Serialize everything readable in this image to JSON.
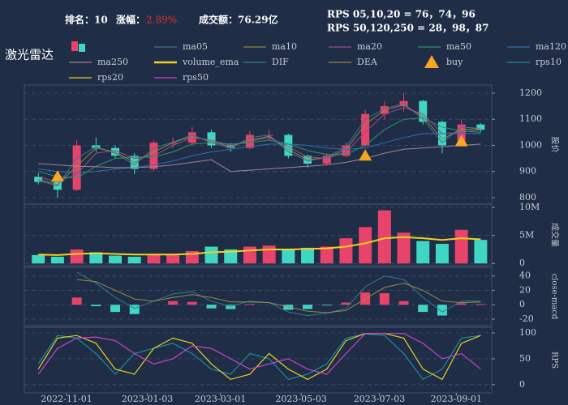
{
  "header": {
    "rank": "排名：10",
    "change_label": "涨幅：",
    "change": "2.89%",
    "turnover": "成交额：76.29亿",
    "rps_short": "RPS 05,10,20 = 76，74，96",
    "rps_long": "RPS 50,120,250 = 28，98，87",
    "title": "激光雷达"
  },
  "chart_data": [
    {
      "type": "candlestick",
      "ylabel": "股价",
      "ylim": [
        775,
        1231
      ],
      "yticks": [
        800,
        900,
        1000,
        1100,
        1200
      ],
      "grid": true,
      "xlim": [
        "2022-10-01",
        "2023-09-28"
      ],
      "x": [
        "2022-10-10",
        "2022-10-25",
        "2022-11-09",
        "2022-11-24",
        "2022-12-09",
        "2022-12-24",
        "2023-01-08",
        "2023-01-23",
        "2023-02-07",
        "2023-02-22",
        "2023-03-09",
        "2023-03-24",
        "2023-04-08",
        "2023-04-23",
        "2023-05-08",
        "2023-05-23",
        "2023-06-07",
        "2023-06-22",
        "2023-07-07",
        "2023-07-22",
        "2023-08-06",
        "2023-08-21",
        "2023-09-05",
        "2023-09-20"
      ],
      "open": [
        880,
        860,
        830,
        1000,
        990,
        960,
        910,
        1010,
        1010,
        1050,
        1000,
        990,
        1040,
        1040,
        960,
        930,
        960,
        1000,
        1120,
        1150,
        1170,
        1090,
        1000,
        1080
      ],
      "high": [
        895,
        870,
        1020,
        1030,
        1000,
        970,
        1020,
        1030,
        1070,
        1060,
        1010,
        1055,
        1060,
        1045,
        965,
        970,
        1010,
        1135,
        1170,
        1200,
        1175,
        1095,
        1100,
        1085
      ],
      "low": [
        850,
        800,
        825,
        975,
        950,
        890,
        900,
        990,
        1000,
        990,
        975,
        985,
        1020,
        950,
        915,
        925,
        955,
        995,
        1100,
        1130,
        1080,
        970,
        995,
        1050
      ],
      "close": [
        860,
        830,
        1000,
        990,
        960,
        910,
        1010,
        1010,
        1050,
        1000,
        990,
        1040,
        1040,
        960,
        930,
        960,
        1000,
        1120,
        1150,
        1170,
        1090,
        1000,
        1080,
        1060
      ],
      "candle_colors": {
        "up": "#e8436a",
        "down": "#3fd6c4"
      },
      "series": [
        {
          "name": "ma05",
          "color": "#3f7390",
          "values": [
            865,
            845,
            950,
            995,
            970,
            925,
            990,
            1012,
            1040,
            1010,
            990,
            1030,
            1040,
            975,
            940,
            955,
            995,
            1100,
            1140,
            1160,
            1100,
            1010,
            1070,
            1065
          ]
        },
        {
          "name": "ma10",
          "color": "#8c8a3c",
          "values": [
            870,
            850,
            920,
            990,
            975,
            935,
            975,
            1010,
            1035,
            1015,
            995,
            1020,
            1035,
            985,
            945,
            952,
            985,
            1080,
            1135,
            1155,
            1110,
            1025,
            1060,
            1065
          ]
        },
        {
          "name": "ma20",
          "color": "#9a4c96",
          "values": [
            880,
            860,
            890,
            970,
            980,
            950,
            960,
            1000,
            1030,
            1020,
            1000,
            1015,
            1030,
            995,
            955,
            950,
            975,
            1050,
            1120,
            1145,
            1120,
            1045,
            1050,
            1060
          ]
        },
        {
          "name": "ma50",
          "color": "#2f9470",
          "values": [
            900,
            880,
            875,
            920,
            950,
            955,
            955,
            975,
            1005,
            1010,
            1005,
            1010,
            1020,
            1005,
            980,
            965,
            965,
            1000,
            1060,
            1100,
            1105,
            1070,
            1055,
            1050
          ]
        },
        {
          "name": "ma120",
          "color": "#2f6fb8",
          "values": [
            910,
            900,
            895,
            900,
            910,
            915,
            925,
            940,
            960,
            975,
            985,
            995,
            1005,
            1005,
            1000,
            990,
            985,
            990,
            1010,
            1030,
            1045,
            1045,
            1045,
            1045
          ]
        },
        {
          "name": "ma250",
          "color": "#a08590",
          "values": [
            930,
            925,
            920,
            918,
            915,
            915,
            918,
            925,
            935,
            945,
            900,
            905,
            910,
            915,
            920,
            925,
            935,
            950,
            970,
            985,
            990,
            995,
            1000,
            1005
          ]
        }
      ],
      "buy": {
        "name": "buy",
        "color": "#f5a623",
        "x": [
          "2022-10-25",
          "2023-06-22",
          "2023-09-05"
        ],
        "values": [
          905,
          985,
          1040
        ]
      }
    },
    {
      "type": "bar",
      "ylabel": "成交量",
      "ylim": [
        -400000,
        10600000
      ],
      "grid": true,
      "xlim": [
        "2022-10-01",
        "2023-09-28"
      ],
      "yticks": [
        0,
        {
          "value": 5000000,
          "label": "5M"
        },
        {
          "value": 10000000,
          "label": "10M"
        }
      ],
      "values": [
        1500000,
        1200000,
        2500000,
        2000000,
        1400000,
        1200000,
        1500000,
        1600000,
        2200000,
        3000000,
        2500000,
        3000000,
        3200000,
        2600000,
        2800000,
        3000000,
        4500000,
        6500000,
        9500000,
        5500000,
        4000000,
        3500000,
        6000000,
        4200000
      ],
      "series": [
        {
          "name": "volume_ema",
          "color": "#f5d020",
          "values": [
            1600000,
            1500000,
            1700000,
            1800000,
            1700000,
            1600000,
            1600000,
            1600000,
            1700000,
            2000000,
            2100000,
            2300000,
            2500000,
            2500000,
            2600000,
            2700000,
            3000000,
            3600000,
            4500000,
            4700000,
            4500000,
            4200000,
            4500000,
            4300000
          ]
        }
      ]
    },
    {
      "type": "macd",
      "ylabel": "close-macd",
      "ylim": [
        -29,
        52
      ],
      "yticks": [
        -20,
        0,
        20,
        40
      ],
      "grid": true,
      "xlim": [
        "2022-10-01",
        "2023-09-28"
      ],
      "histogram": {
        "colors": {
          "up": "#e8436a",
          "down": "#3fd6c4"
        },
        "values": [
          null,
          null,
          10,
          -2,
          -10,
          -13,
          0,
          5,
          4,
          -5,
          -6,
          1,
          0,
          -7,
          -6,
          -1,
          3,
          17,
          16,
          5,
          -10,
          -15,
          2,
          1
        ]
      },
      "series": [
        {
          "name": "DIF",
          "color": "#2a8090",
          "values": [
            null,
            null,
            45,
            30,
            10,
            -5,
            5,
            15,
            18,
            5,
            -2,
            5,
            3,
            -10,
            -15,
            -12,
            -5,
            25,
            40,
            35,
            10,
            -10,
            5,
            5
          ]
        },
        {
          "name": "DEA",
          "color": "#9a8a4a",
          "values": [
            null,
            null,
            35,
            32,
            20,
            8,
            5,
            10,
            14,
            10,
            4,
            4,
            3,
            -3,
            -9,
            -11,
            -8,
            8,
            24,
            30,
            20,
            5,
            3,
            4
          ]
        }
      ]
    },
    {
      "type": "line",
      "ylabel": "RPS",
      "ylim": [
        -16,
        111
      ],
      "yticks": [
        0,
        50,
        100
      ],
      "grid": true,
      "xlim": [
        "2022-10-01",
        "2023-09-28"
      ],
      "xticks": [
        "2022-11-01",
        "2023-01-03",
        "2023-03-01",
        "2023-05-03",
        "2023-07-03",
        "2023-09-01"
      ],
      "series": [
        {
          "name": "rps10",
          "color": "#1a8f9c",
          "values": [
            40,
            95,
            90,
            60,
            20,
            60,
            70,
            80,
            60,
            30,
            20,
            60,
            50,
            10,
            20,
            40,
            90,
            98,
            95,
            60,
            10,
            30,
            90,
            95
          ]
        },
        {
          "name": "rps20",
          "color": "#e8d020",
          "values": [
            30,
            90,
            95,
            80,
            30,
            20,
            70,
            90,
            80,
            40,
            10,
            20,
            60,
            30,
            10,
            30,
            85,
            99,
            99,
            90,
            30,
            10,
            80,
            95
          ]
        },
        {
          "name": "rps50",
          "color": "#c844c8",
          "values": [
            20,
            70,
            90,
            92,
            85,
            60,
            40,
            50,
            75,
            70,
            50,
            30,
            40,
            50,
            30,
            20,
            60,
            99,
            99,
            99,
            80,
            50,
            60,
            30
          ]
        }
      ]
    }
  ]
}
